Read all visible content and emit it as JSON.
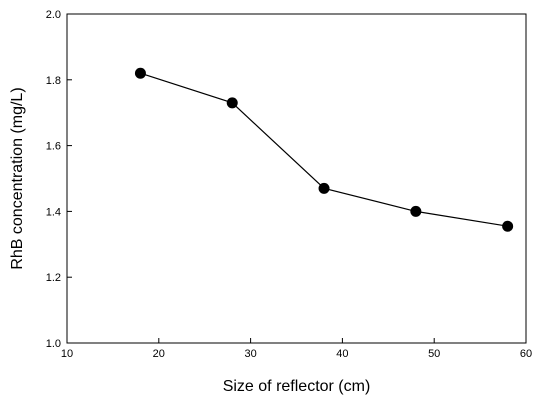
{
  "chart_data": {
    "type": "line",
    "title": "",
    "xlabel": "Size of reflector (cm)",
    "ylabel": "RhB concentration (mg/L)",
    "xlim": [
      10,
      60
    ],
    "ylim": [
      1.0,
      2.0
    ],
    "x_ticks": [
      "10",
      "20",
      "30",
      "40",
      "50",
      "60"
    ],
    "y_ticks": [
      "1.0",
      "1.2",
      "1.4",
      "1.6",
      "1.8",
      "2.0"
    ],
    "grid": false,
    "series": [
      {
        "x": [
          18,
          28,
          38,
          48,
          58
        ],
        "values": [
          1.82,
          1.73,
          1.47,
          1.4,
          1.355
        ]
      }
    ],
    "colors": {
      "line": "#000000",
      "marker": "#000000"
    }
  }
}
